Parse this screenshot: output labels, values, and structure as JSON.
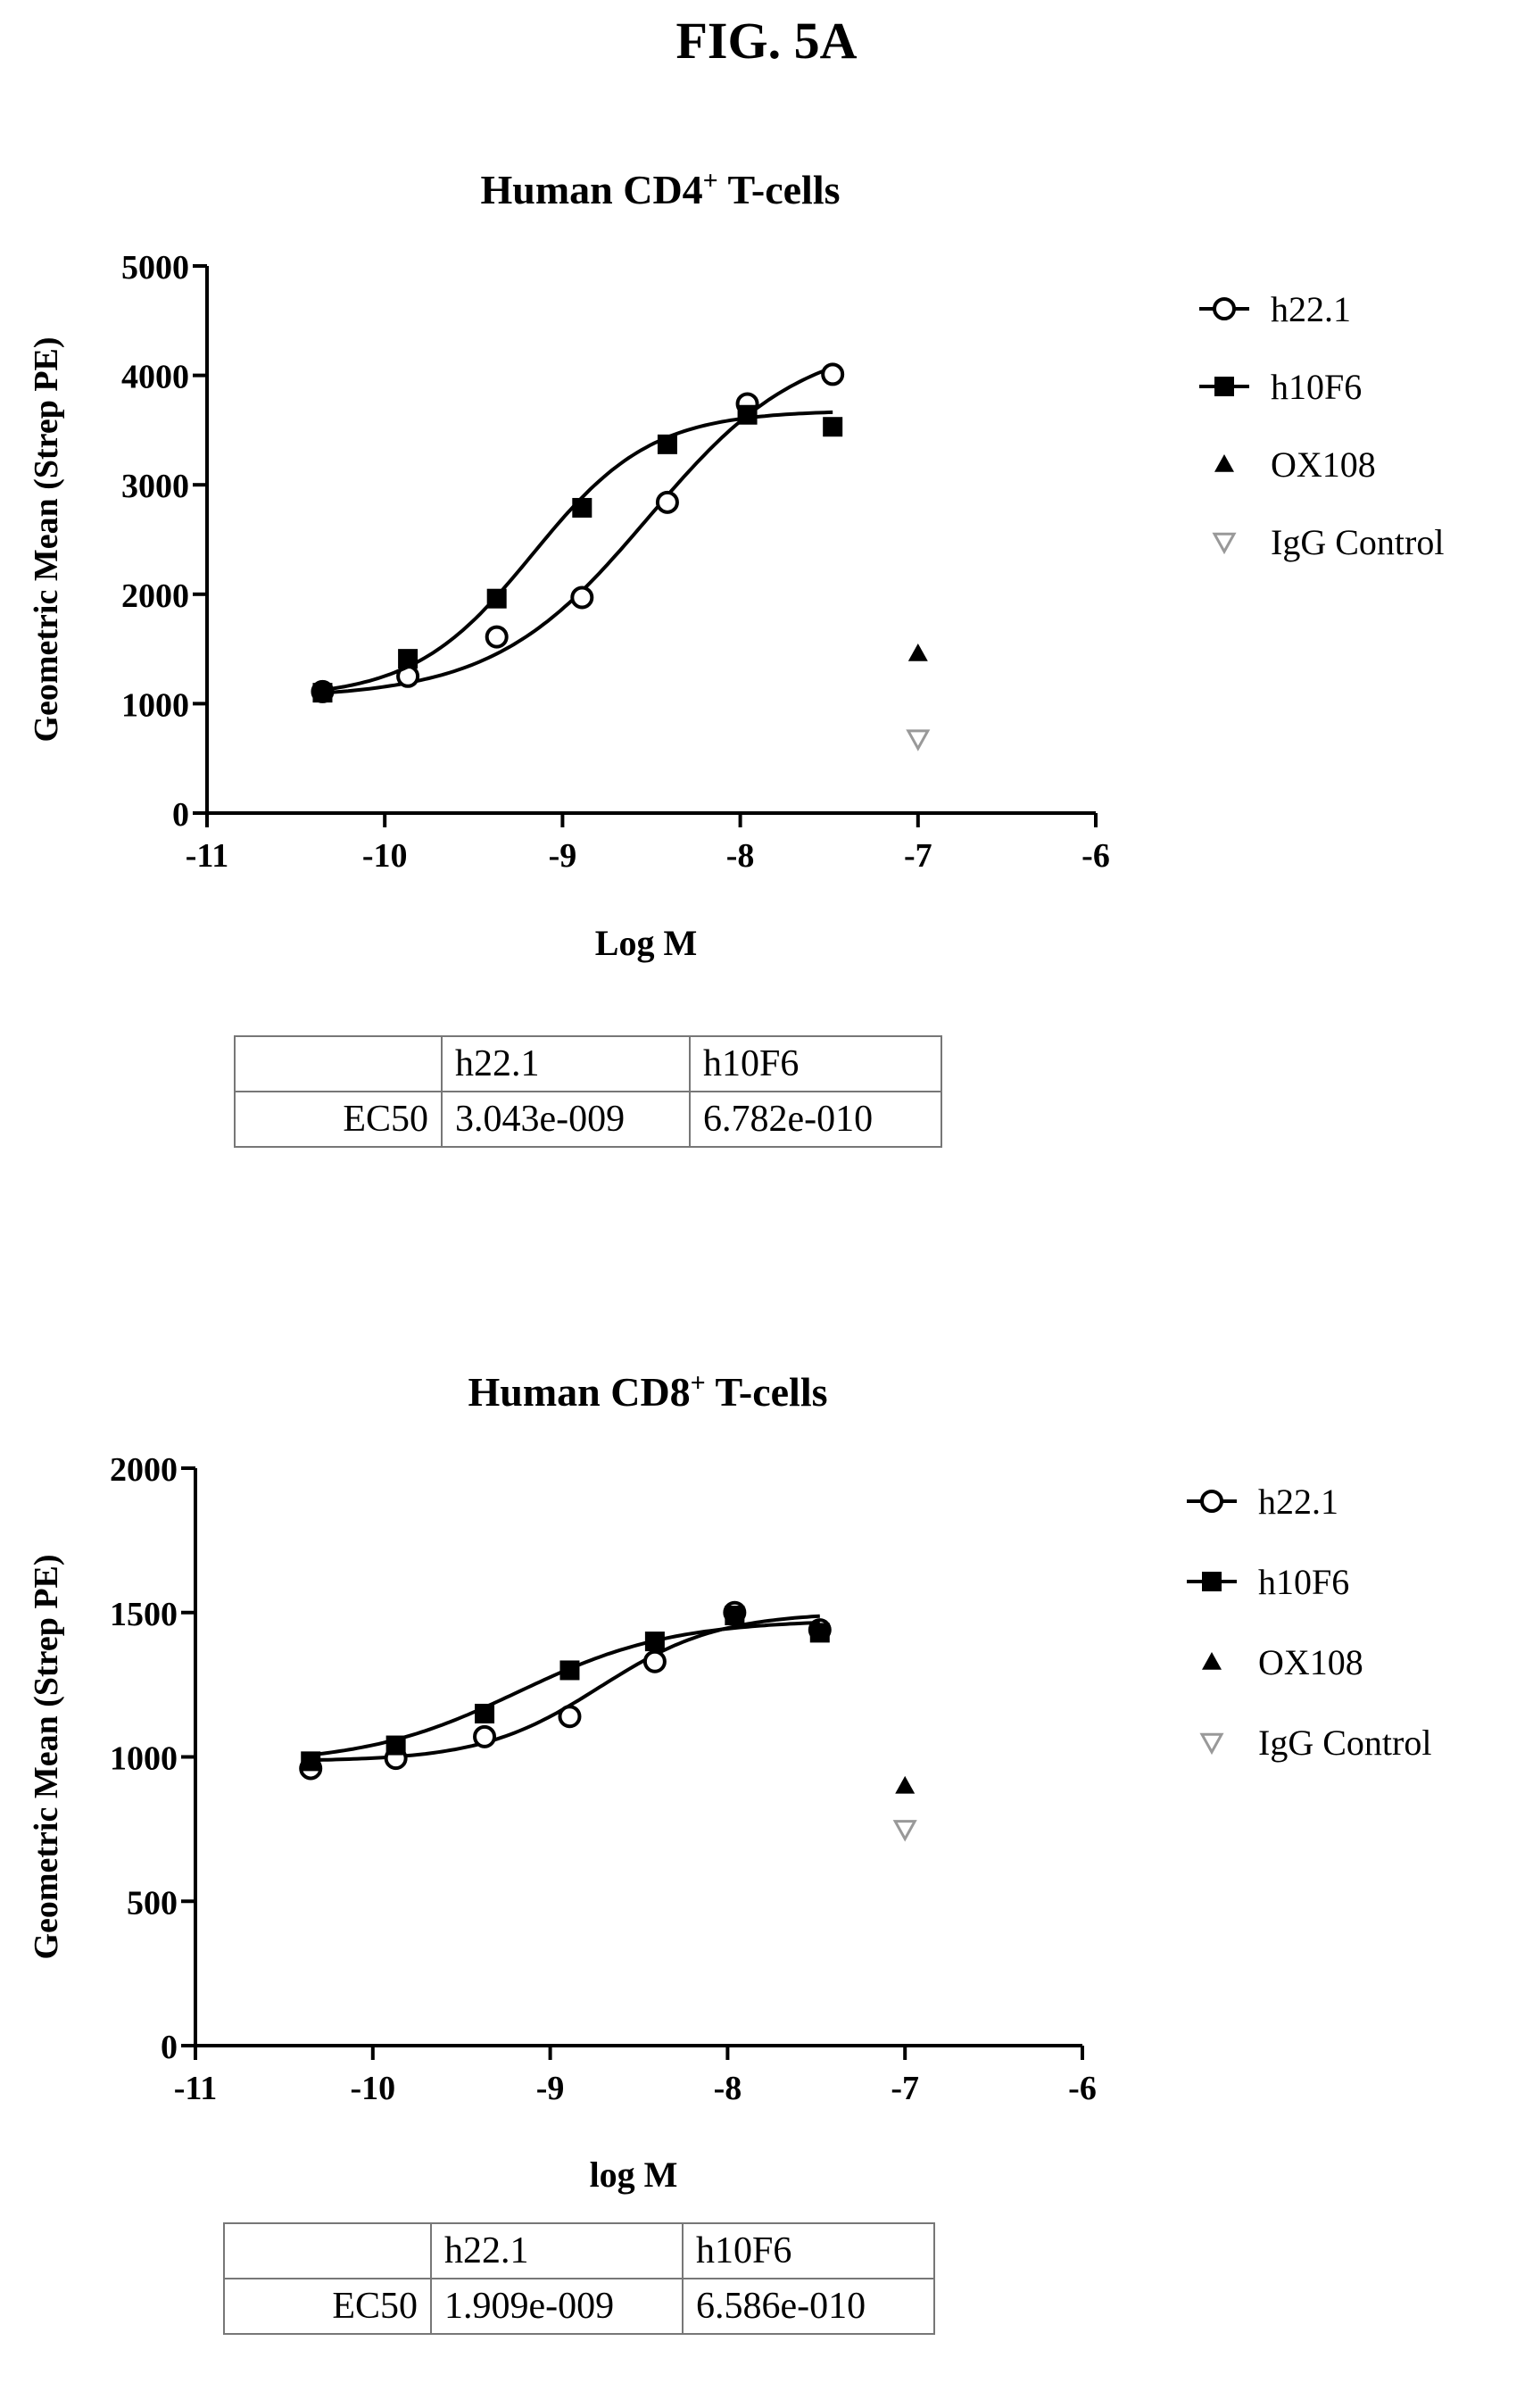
{
  "figure_title": "FIG. 5A",
  "legend_labels": [
    "h22.1",
    "h10F6",
    "OX108",
    "IgG Control"
  ],
  "chart_data": [
    {
      "type": "scatter",
      "title": "Human CD4",
      "title_superscript": "+",
      "title_suffix": " T-cells",
      "xlabel": "Log M",
      "ylabel": "Geometric Mean (Strep PE)",
      "xlim": [
        -11,
        -6
      ],
      "ylim": [
        0,
        5000
      ],
      "xticks": [
        -11,
        -10,
        -9,
        -8,
        -7,
        -6
      ],
      "yticks": [
        0,
        1000,
        2000,
        3000,
        4000,
        5000
      ],
      "legend_position": "right",
      "series": [
        {
          "name": "h22.1",
          "marker": "open-circle",
          "fit": {
            "bottom": 1050,
            "top": 4350,
            "logec50": -8.517,
            "hill": 1.0
          },
          "x": [
            -10.35,
            -9.87,
            -9.37,
            -8.89,
            -8.41,
            -7.96,
            -7.48
          ],
          "y": [
            1110,
            1250,
            1610,
            1970,
            2840,
            3740,
            4010
          ]
        },
        {
          "name": "h10F6",
          "marker": "filled-square",
          "fit": {
            "bottom": 1050,
            "top": 3680,
            "logec50": -9.169,
            "hill": 1.3
          },
          "x": [
            -10.35,
            -9.87,
            -9.37,
            -8.89,
            -8.41,
            -7.96,
            -7.48
          ],
          "y": [
            1100,
            1410,
            1960,
            2790,
            3370,
            3640,
            3530
          ]
        },
        {
          "name": "OX108",
          "marker": "filled-triangle",
          "x": [
            -7.0
          ],
          "y": [
            1460
          ]
        },
        {
          "name": "IgG Control",
          "marker": "open-triangle-down",
          "x": [
            -7.0
          ],
          "y": [
            680
          ]
        }
      ],
      "table": {
        "row_label": "EC50",
        "columns": [
          "h22.1",
          "h10F6"
        ],
        "values": [
          "3.043e-009",
          "6.782e-010"
        ]
      }
    },
    {
      "type": "scatter",
      "title": "Human CD8",
      "title_superscript": "+",
      "title_suffix": " T-cells",
      "xlabel": "log M",
      "ylabel": "Geometric Mean (Strep PE)",
      "xlim": [
        -11,
        -6
      ],
      "ylim": [
        0,
        2000
      ],
      "xticks": [
        -11,
        -10,
        -9,
        -8,
        -7,
        -6
      ],
      "yticks": [
        0,
        500,
        1000,
        1500,
        2000
      ],
      "legend_position": "right",
      "series": [
        {
          "name": "h22.1",
          "marker": "open-circle",
          "fit": {
            "bottom": 985,
            "top": 1500,
            "logec50": -8.719,
            "hill": 1.3
          },
          "x": [
            -10.35,
            -9.87,
            -9.37,
            -8.89,
            -8.41,
            -7.96,
            -7.48
          ],
          "y": [
            960,
            995,
            1070,
            1140,
            1330,
            1500,
            1440
          ]
        },
        {
          "name": "h10F6",
          "marker": "filled-square",
          "fit": {
            "bottom": 975,
            "top": 1475,
            "logec50": -9.181,
            "hill": 1.0
          },
          "x": [
            -10.35,
            -9.87,
            -9.37,
            -8.89,
            -8.41,
            -7.96,
            -7.48
          ],
          "y": [
            985,
            1040,
            1150,
            1300,
            1400,
            1490,
            1430
          ]
        },
        {
          "name": "OX108",
          "marker": "filled-triangle",
          "x": [
            -7.0
          ],
          "y": [
            900
          ]
        },
        {
          "name": "IgG Control",
          "marker": "open-triangle-down",
          "x": [
            -7.0
          ],
          "y": [
            750
          ]
        }
      ],
      "table": {
        "row_label": "EC50",
        "columns": [
          "h22.1",
          "h10F6"
        ],
        "values": [
          "1.909e-009",
          "6.586e-010"
        ]
      }
    }
  ]
}
